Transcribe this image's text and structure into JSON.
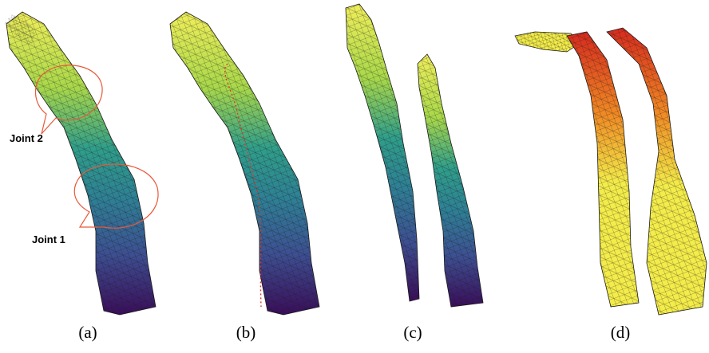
{
  "figure": {
    "panels": [
      {
        "caption": "(a)"
      },
      {
        "caption": "(b)"
      },
      {
        "caption": "(c)"
      },
      {
        "caption": "(d)"
      }
    ],
    "joint_labels": {
      "joint2": "Joint 2",
      "joint1": "Joint 1"
    },
    "colors": {
      "viridis_top": "#d9e84a",
      "viridis_mid": "#2a8e8c",
      "viridis_bottom": "#3b0f5c",
      "heat_top": "#d62a1e",
      "heat_mid": "#f08a24",
      "heat_bottom": "#f3ec4a",
      "callout": "#e8593a",
      "mesh_line": "#1a1a1a",
      "cut_dots": "#e03a2a"
    }
  }
}
